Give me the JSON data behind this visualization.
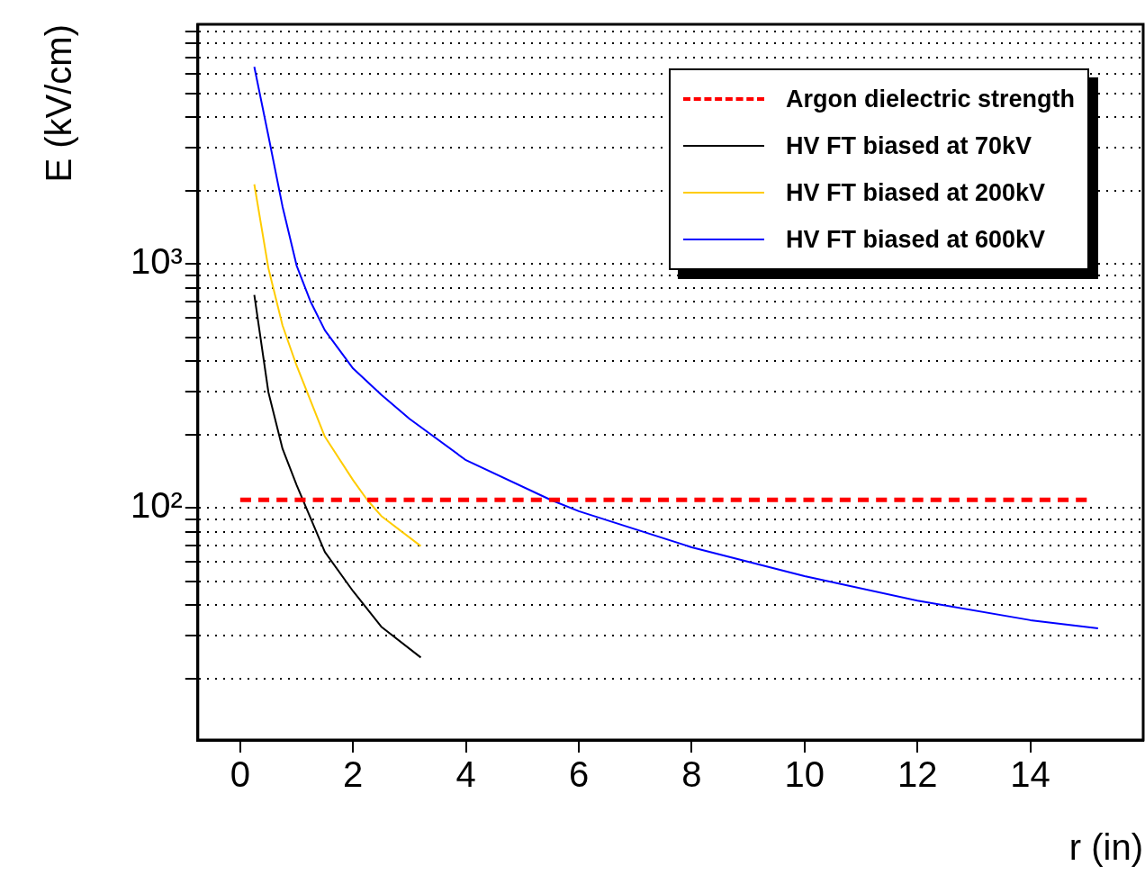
{
  "chart_data": {
    "type": "line",
    "xlabel": "r (in)",
    "ylabel": "E (kV/cm)",
    "xlim": [
      -0.75,
      16
    ],
    "xticks": [
      0,
      2,
      4,
      6,
      8,
      10,
      12,
      14
    ],
    "ylim": [
      11.2,
      9600
    ],
    "log": "y",
    "yticks": [
      {
        "value": 20,
        "label": null
      },
      {
        "value": 30,
        "label": null
      },
      {
        "value": 40,
        "label": null
      },
      {
        "value": 50,
        "label": null
      },
      {
        "value": 60,
        "label": null
      },
      {
        "value": 70,
        "label": null
      },
      {
        "value": 80,
        "label": null
      },
      {
        "value": 90,
        "label": null
      },
      {
        "value": 100,
        "label": "10²"
      },
      {
        "value": 200,
        "label": null
      },
      {
        "value": 300,
        "label": null
      },
      {
        "value": 400,
        "label": null
      },
      {
        "value": 500,
        "label": null
      },
      {
        "value": 600,
        "label": null
      },
      {
        "value": 700,
        "label": null
      },
      {
        "value": 800,
        "label": null
      },
      {
        "value": 900,
        "label": null
      },
      {
        "value": 1000,
        "label": "10³"
      },
      {
        "value": 2000,
        "label": null
      },
      {
        "value": 3000,
        "label": null
      },
      {
        "value": 4000,
        "label": null
      },
      {
        "value": 5000,
        "label": null
      },
      {
        "value": 6000,
        "label": null
      },
      {
        "value": 7000,
        "label": null
      },
      {
        "value": 8000,
        "label": null
      },
      {
        "value": 9000,
        "label": null
      }
    ],
    "grid": "y",
    "legend": "top right",
    "marker": "none",
    "series": [
      {
        "name": "Argon dielectric strength",
        "color": "#ff0000",
        "line_style": "dashed",
        "x": [
          0,
          15
        ],
        "values": [
          108,
          108
        ]
      },
      {
        "name": "HV FT biased at 70kV",
        "color": "#000000",
        "line_style": "solid",
        "x": [
          0.25,
          0.5,
          0.75,
          1,
          1.5,
          2,
          2.5,
          3.2
        ],
        "values": [
          747,
          298,
          175,
          124,
          66,
          45.6,
          32.6,
          24.4
        ]
      },
      {
        "name": "HV FT biased at 200kV",
        "color": "#ffcc00",
        "line_style": "solid",
        "x": [
          0.25,
          0.5,
          0.75,
          1,
          1.5,
          2,
          2.25,
          2.5,
          3.2
        ],
        "values": [
          2120,
          960,
          560,
          383,
          196,
          130,
          108,
          92.7,
          69.8
        ]
      },
      {
        "name": "HV FT biased at 600kV",
        "color": "#0000ff",
        "line_style": "solid",
        "x": [
          0.25,
          0.5,
          0.75,
          1,
          1.25,
          1.5,
          2,
          2.5,
          3,
          4,
          5.5,
          6,
          8,
          10,
          12,
          14,
          15.2
        ],
        "values": [
          6430,
          3350,
          1720,
          985,
          698,
          535,
          373,
          291,
          232,
          157,
          108,
          97,
          69,
          52.6,
          41.7,
          34.7,
          32.1
        ]
      }
    ]
  }
}
